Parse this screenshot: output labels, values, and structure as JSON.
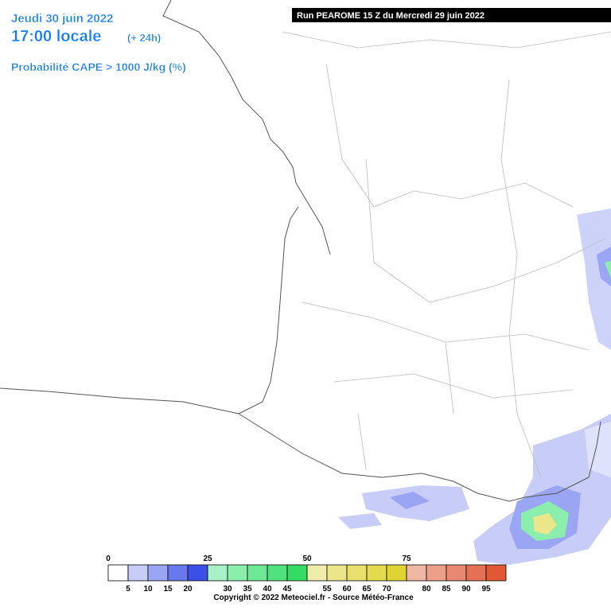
{
  "header": {
    "date": "Jeudi 30 juin 2022",
    "time": "17:00 locale",
    "offset": "(+ 24h)",
    "parameter": "Probabilité CAPE > 1000 J/kg (%)"
  },
  "run": "Run PEAROME 15 Z du Mercredi 29 juin 2022",
  "legend": {
    "major_labels": [
      0,
      25,
      50,
      75
    ],
    "minor_labels": [
      5,
      10,
      15,
      20,
      30,
      35,
      40,
      45,
      55,
      60,
      65,
      70,
      80,
      85,
      90,
      95
    ],
    "colors": [
      "#ffffff",
      "#c8cdf8",
      "#9aa5f3",
      "#6a78ee",
      "#3c50e8",
      "#a8f0c8",
      "#8ceeac",
      "#6ee896",
      "#50e27c",
      "#34dc64",
      "#f0ecaa",
      "#ece68a",
      "#e8e06c",
      "#e4da4e",
      "#e0d434",
      "#f0b8a4",
      "#eca08a",
      "#e88870",
      "#e47056",
      "#e05834"
    ]
  },
  "copyright": "Copyright © 2022 Meteociel.fr - Source Météo-France"
}
